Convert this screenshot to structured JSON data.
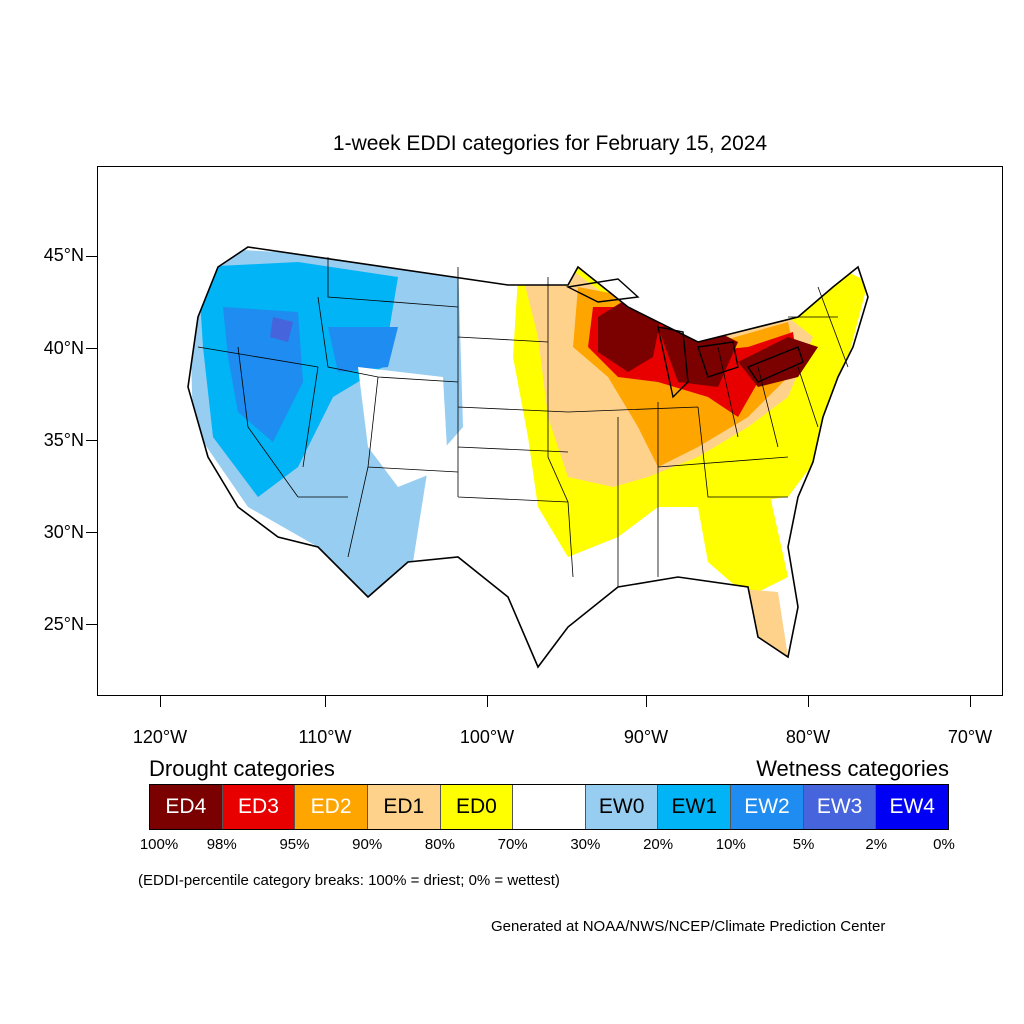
{
  "title": "1-week EDDI categories for February 15, 2024",
  "map": {
    "lat_ticks": [
      "45°N",
      "40°N",
      "35°N",
      "30°N",
      "25°N"
    ],
    "lon_ticks": [
      "120°W",
      "110°W",
      "100°W",
      "90°W",
      "80°W",
      "70°W"
    ],
    "colors": {
      "ED4": "#7b0000",
      "ED3": "#e80000",
      "ED2": "#ffa500",
      "ED1": "#ffd28c",
      "ED0": "#ffff00",
      "neutral": "#ffffff",
      "EW0": "#96cdf0",
      "EW1": "#00b4f5",
      "EW2": "#1e8cf0",
      "EW3": "#4664dc",
      "EW4": "#0000f5"
    }
  },
  "legend": {
    "drought_heading": "Drought categories",
    "wetness_heading": "Wetness categories",
    "categories": [
      {
        "label": "ED4",
        "color": "#7b0000",
        "text_color": "#ffffff"
      },
      {
        "label": "ED3",
        "color": "#e80000",
        "text_color": "#ffffff"
      },
      {
        "label": "ED2",
        "color": "#ffa500",
        "text_color": "#ffffff"
      },
      {
        "label": "ED1",
        "color": "#ffd28c",
        "text_color": "#000000"
      },
      {
        "label": "ED0",
        "color": "#ffff00",
        "text_color": "#000000"
      },
      {
        "label": "",
        "color": "#ffffff",
        "text_color": "#000000"
      },
      {
        "label": "EW0",
        "color": "#96cdf0",
        "text_color": "#000000"
      },
      {
        "label": "EW1",
        "color": "#00b4f5",
        "text_color": "#000000"
      },
      {
        "label": "EW2",
        "color": "#1e8cf0",
        "text_color": "#ffffff"
      },
      {
        "label": "EW3",
        "color": "#4664dc",
        "text_color": "#ffffff"
      },
      {
        "label": "EW4",
        "color": "#0000f5",
        "text_color": "#ffffff"
      }
    ],
    "breaks": [
      "100%",
      "98%",
      "95%",
      "90%",
      "80%",
      "70%",
      "30%",
      "20%",
      "10%",
      "5%",
      "2%",
      "0%"
    ]
  },
  "note": "(EDDI-percentile category breaks: 100% = driest; 0% = wettest)",
  "credit": "Generated at NOAA/NWS/NCEP/Climate Prediction Center"
}
